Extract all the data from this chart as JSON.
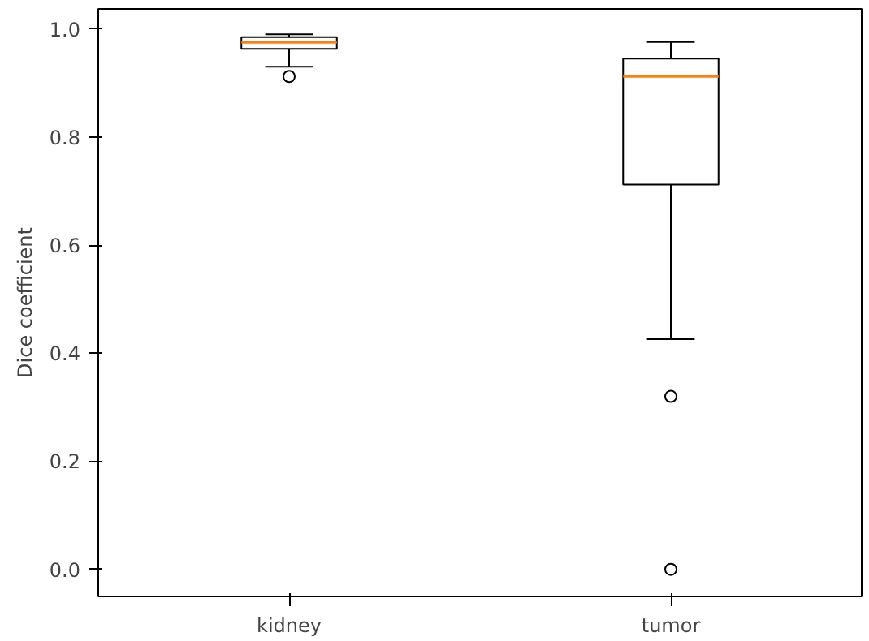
{
  "chart_data": {
    "type": "box",
    "ylabel": "Dice coefficient",
    "categories": [
      "kidney",
      "tumor"
    ],
    "boxes": [
      {
        "low": 0.93,
        "q1": 0.963,
        "median": 0.975,
        "q3": 0.985,
        "high": 0.99,
        "outliers": [
          0.912
        ]
      },
      {
        "low": 0.426,
        "q1": 0.712,
        "median": 0.912,
        "q3": 0.945,
        "high": 0.976,
        "outliers": [
          0.32,
          0.0
        ]
      }
    ],
    "color": "#000000",
    "ylim": [
      -0.05,
      1.037
    ],
    "yticks": [
      {
        "value": 0,
        "label": "0.0"
      },
      0.2,
      0.4,
      0.6,
      0.8,
      {
        "value": 1,
        "label": "1.0"
      }
    ],
    "grid": false
  }
}
